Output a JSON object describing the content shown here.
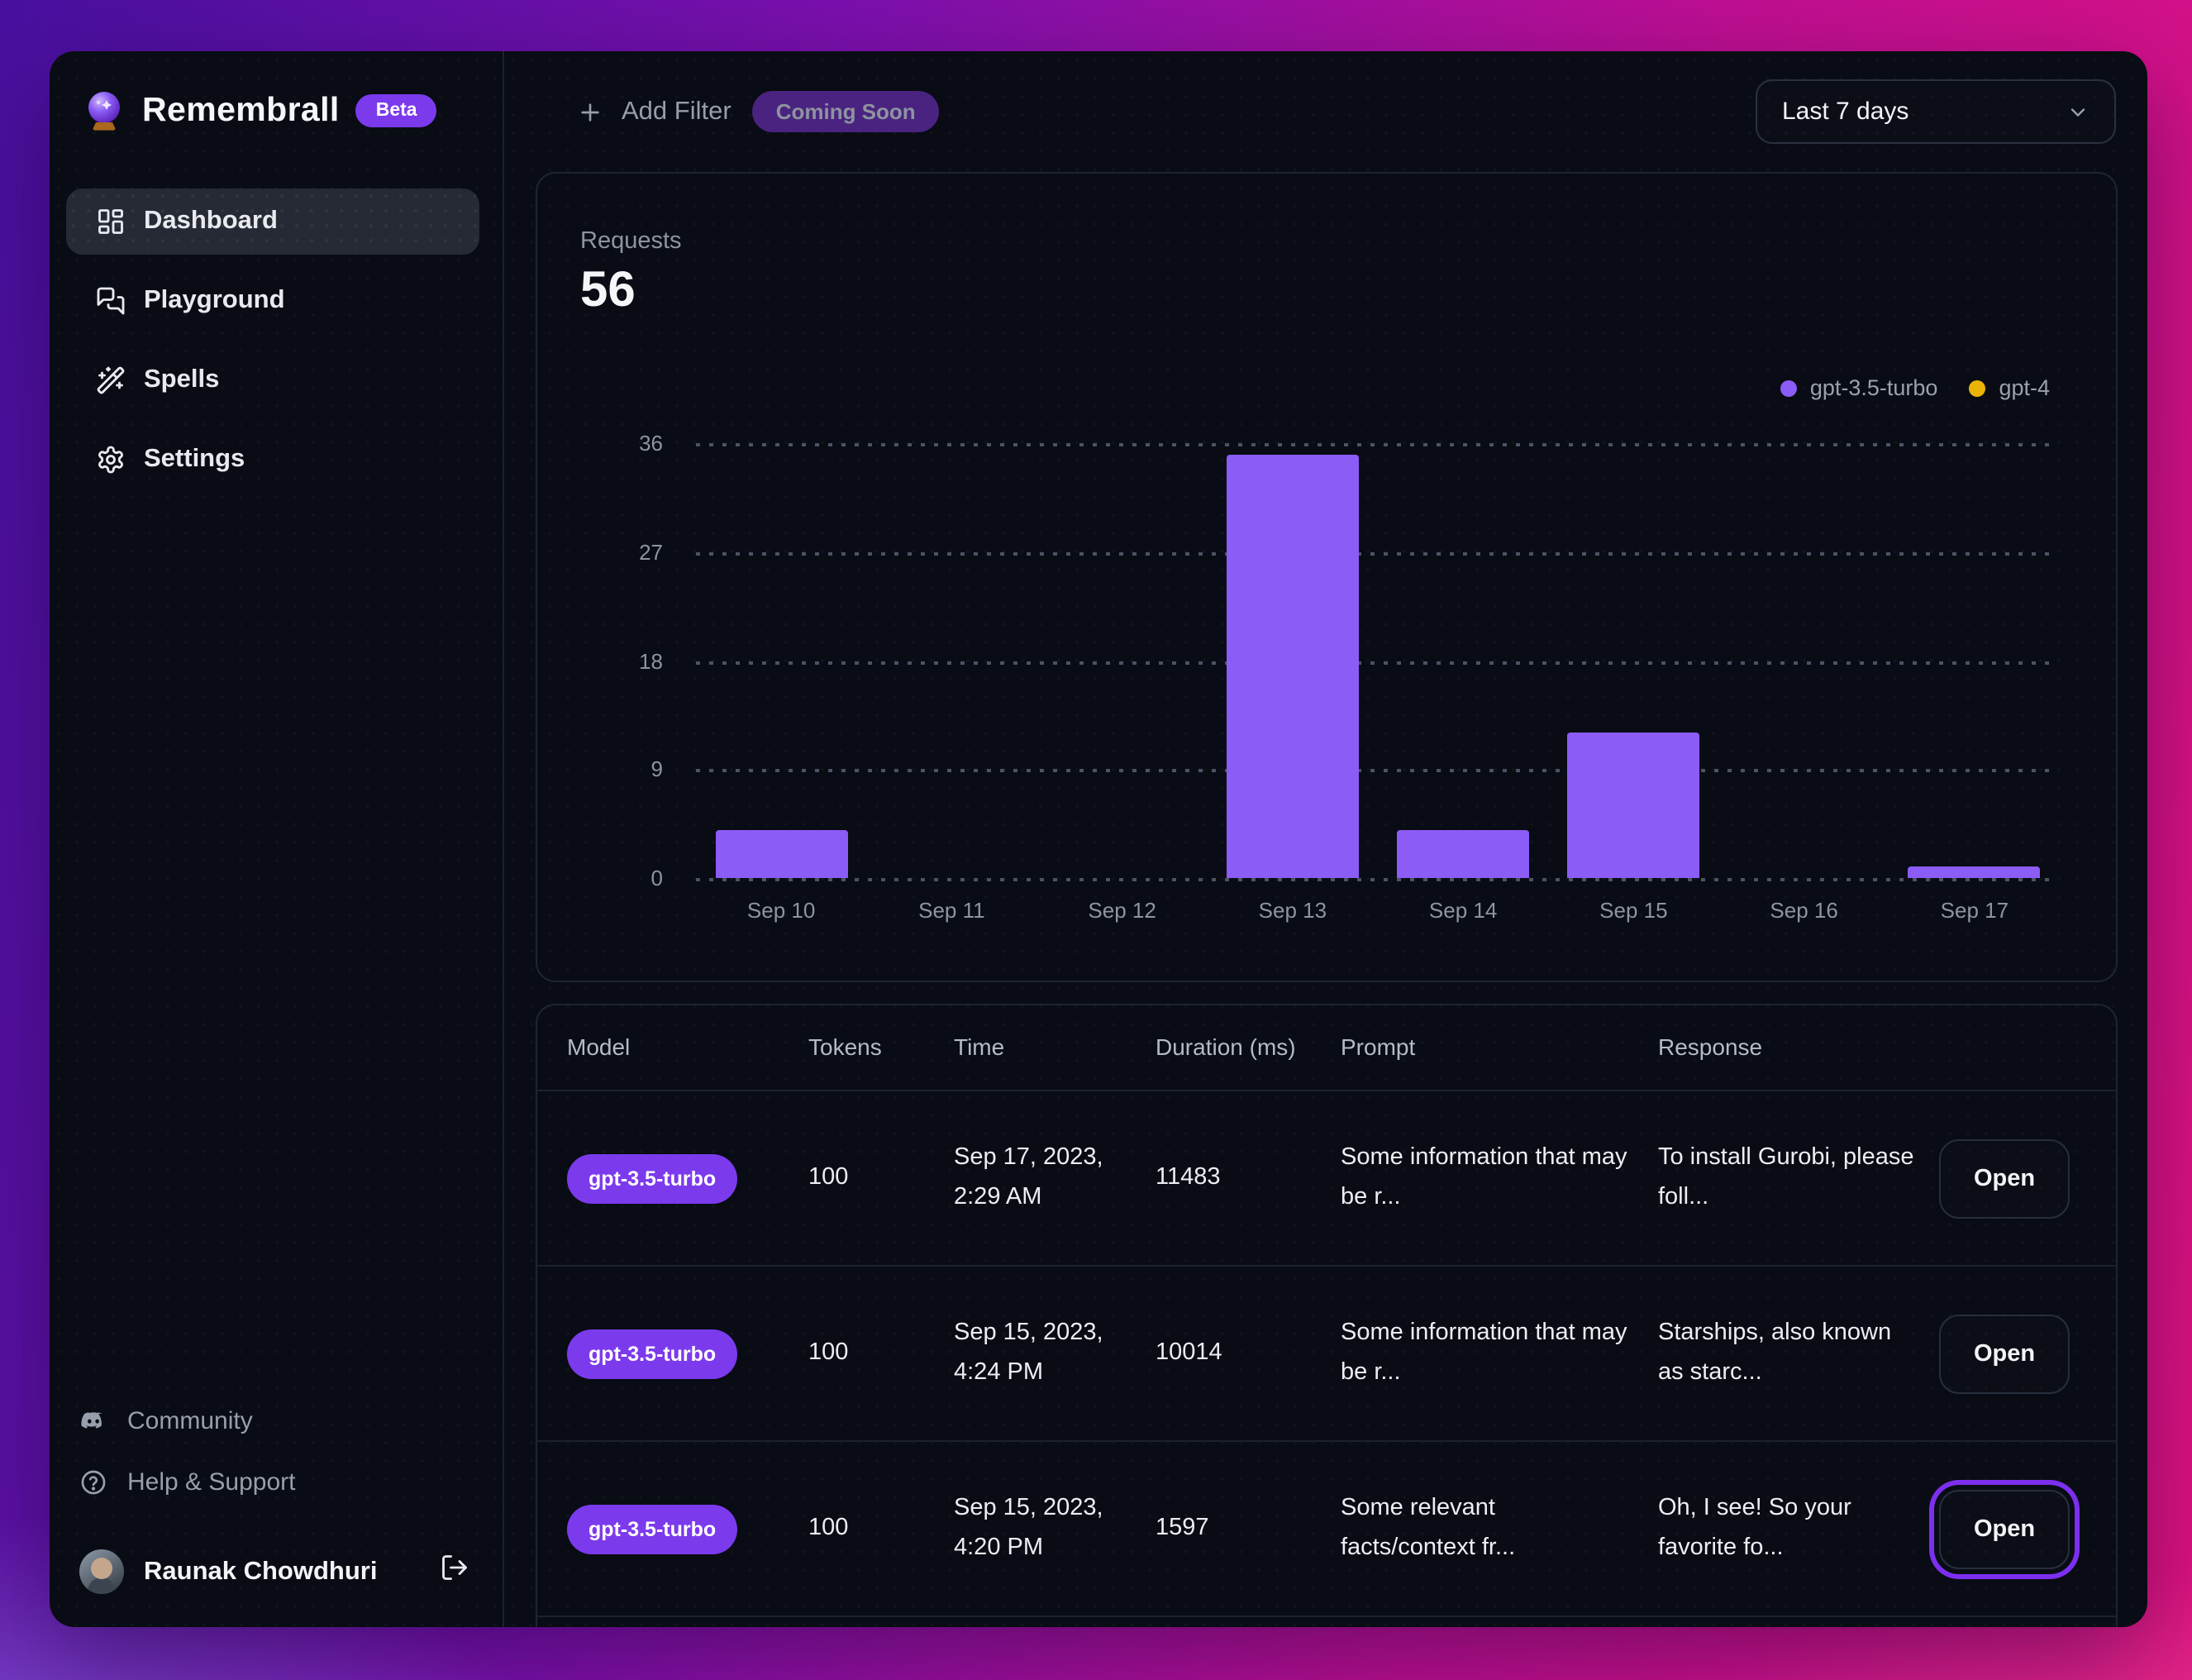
{
  "app": {
    "title": "Remembrall",
    "badge": "Beta"
  },
  "sidebar": {
    "items": [
      {
        "label": "Dashboard",
        "icon": "dashboard-grid-icon",
        "active": true
      },
      {
        "label": "Playground",
        "icon": "chat-bubbles-icon",
        "active": false
      },
      {
        "label": "Spells",
        "icon": "magic-wand-icon",
        "active": false
      },
      {
        "label": "Settings",
        "icon": "gear-icon",
        "active": false
      }
    ],
    "footer_items": [
      {
        "label": "Community",
        "icon": "discord-icon"
      },
      {
        "label": "Help & Support",
        "icon": "help-circle-icon"
      }
    ],
    "user": {
      "name": "Raunak Chowdhuri",
      "icon": "logout-icon"
    }
  },
  "topbar": {
    "add_filter_label": "Add Filter",
    "coming_soon_label": "Coming Soon",
    "date_range_value": "Last 7 days"
  },
  "chart_data": {
    "type": "bar",
    "title": "Requests",
    "total": "56",
    "categories": [
      "Sep 10",
      "Sep 11",
      "Sep 12",
      "Sep 13",
      "Sep 14",
      "Sep 15",
      "Sep 16",
      "Sep 17"
    ],
    "series": [
      {
        "name": "gpt-3.5-turbo",
        "color": "#8b5cf6",
        "values": [
          4,
          0,
          0,
          35,
          4,
          12,
          0,
          1
        ]
      },
      {
        "name": "gpt-4",
        "color": "#eab308",
        "values": [
          0,
          0,
          0,
          0,
          0,
          0,
          0,
          0
        ]
      }
    ],
    "yticks": [
      0,
      9,
      18,
      27,
      36
    ],
    "ylim": [
      0,
      36
    ],
    "grid": "horizontal-dotted",
    "legend_position": "top-right"
  },
  "table": {
    "headers": [
      "Model",
      "Tokens",
      "Time",
      "Duration (ms)",
      "Prompt",
      "Response"
    ],
    "rows": [
      {
        "model": "gpt-3.5-turbo",
        "tokens": "100",
        "time": "Sep 17, 2023, 2:29 AM",
        "duration": "11483",
        "prompt": "Some information that may be r...",
        "response": "To install Gurobi, please foll...",
        "action": "Open"
      },
      {
        "model": "gpt-3.5-turbo",
        "tokens": "100",
        "time": "Sep 15, 2023, 4:24 PM",
        "duration": "10014",
        "prompt": "Some information that may be r...",
        "response": "Starships, also known as starc...",
        "action": "Open"
      },
      {
        "model": "gpt-3.5-turbo",
        "tokens": "100",
        "time": "Sep 15, 2023, 4:20 PM",
        "duration": "1597",
        "prompt": "Some relevant facts/context fr...",
        "response": "Oh, I see! So your favorite fo...",
        "action": "Open"
      }
    ]
  },
  "colors": {
    "accent": "#7c3aed",
    "bar_purple": "#8b5cf6",
    "gpt4_yellow": "#eab308"
  }
}
